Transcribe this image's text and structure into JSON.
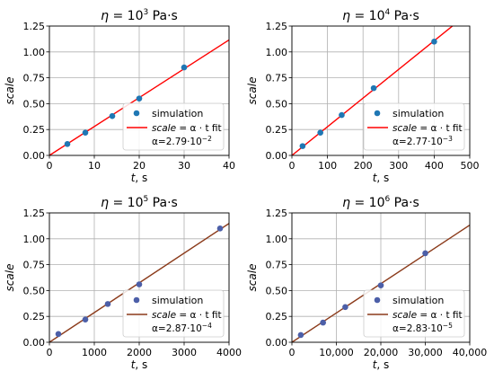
{
  "chart_data": [
    {
      "type": "scatter",
      "title_prefix": "η = 10",
      "title_exponent": "3",
      "title_unit": "Pa·s",
      "xlabel": "t, s",
      "ylabel": "scale",
      "xlim": [
        0,
        40
      ],
      "ylim": [
        0,
        1.25
      ],
      "xticks": [
        0,
        10,
        20,
        30,
        40
      ],
      "xtick_labels": [
        "0",
        "10",
        "20",
        "30",
        "40"
      ],
      "yticks": [
        0,
        0.25,
        0.5,
        0.75,
        1.0,
        1.25
      ],
      "ytick_labels": [
        "0.00",
        "0.25",
        "0.50",
        "0.75",
        "1.00",
        "1.25"
      ],
      "grid": true,
      "legend_position": "bottom-right",
      "points": [
        [
          4,
          0.11
        ],
        [
          8,
          0.22
        ],
        [
          14,
          0.38
        ],
        [
          20,
          0.55
        ],
        [
          30,
          0.85
        ]
      ],
      "fit_slope": 0.0279,
      "marker_color": "#1f77b4",
      "line_color": "#ff0000",
      "legend_simulation": "simulation",
      "legend_fit_lhs": "scale",
      "legend_fit_rhs": " = α · t fit",
      "legend_alpha_base": "α=2.79·10",
      "legend_alpha_exponent": "−2"
    },
    {
      "type": "scatter",
      "title_prefix": "η = 10",
      "title_exponent": "4",
      "title_unit": "Pa·s",
      "xlabel": "t, s",
      "ylabel": "scale",
      "xlim": [
        0,
        500
      ],
      "ylim": [
        0,
        1.25
      ],
      "xticks": [
        0,
        100,
        200,
        300,
        400,
        500
      ],
      "xtick_labels": [
        "0",
        "100",
        "200",
        "300",
        "400",
        "500"
      ],
      "yticks": [
        0,
        0.25,
        0.5,
        0.75,
        1.0,
        1.25
      ],
      "ytick_labels": [
        "0.00",
        "0.25",
        "0.50",
        "0.75",
        "1.00",
        "1.25"
      ],
      "grid": true,
      "legend_position": "bottom-right",
      "points": [
        [
          30,
          0.09
        ],
        [
          80,
          0.22
        ],
        [
          140,
          0.39
        ],
        [
          230,
          0.65
        ],
        [
          400,
          1.1
        ]
      ],
      "fit_slope": 0.00277,
      "marker_color": "#1f77b4",
      "line_color": "#ff0000",
      "legend_simulation": "simulation",
      "legend_fit_lhs": "scale",
      "legend_fit_rhs": " = α · t fit",
      "legend_alpha_base": "α=2.77·10",
      "legend_alpha_exponent": "−3"
    },
    {
      "type": "scatter",
      "title_prefix": "η = 10",
      "title_exponent": "5",
      "title_unit": "Pa·s",
      "xlabel": "t, s",
      "ylabel": "scale",
      "xlim": [
        0,
        4000
      ],
      "ylim": [
        0,
        1.25
      ],
      "xticks": [
        0,
        1000,
        2000,
        3000,
        4000
      ],
      "xtick_labels": [
        "0",
        "1000",
        "2000",
        "3000",
        "4000"
      ],
      "yticks": [
        0,
        0.25,
        0.5,
        0.75,
        1.0,
        1.25
      ],
      "ytick_labels": [
        "0.00",
        "0.25",
        "0.50",
        "0.75",
        "1.00",
        "1.25"
      ],
      "grid": true,
      "legend_position": "bottom-right",
      "points": [
        [
          200,
          0.08
        ],
        [
          800,
          0.22
        ],
        [
          1300,
          0.37
        ],
        [
          2000,
          0.56
        ],
        [
          3800,
          1.1
        ]
      ],
      "fit_slope": 0.000287,
      "marker_color": "#4c5fa8",
      "line_color": "#8b3a1a",
      "legend_simulation": "simulation",
      "legend_fit_lhs": "scale",
      "legend_fit_rhs": " = α · t fit",
      "legend_alpha_base": "α=2.87·10",
      "legend_alpha_exponent": "−4"
    },
    {
      "type": "scatter",
      "title_prefix": "η = 10",
      "title_exponent": "6",
      "title_unit": "Pa·s",
      "xlabel": "t, s",
      "ylabel": "scale",
      "xlim": [
        0,
        40000
      ],
      "ylim": [
        0,
        1.25
      ],
      "xticks": [
        0,
        10000,
        20000,
        30000,
        40000
      ],
      "xtick_labels": [
        "0",
        "10,000",
        "20,000",
        "30,000",
        "40,000"
      ],
      "yticks": [
        0,
        0.25,
        0.5,
        0.75,
        1.0,
        1.25
      ],
      "ytick_labels": [
        "0.00",
        "0.25",
        "0.50",
        "0.75",
        "1.00",
        "1.25"
      ],
      "grid": true,
      "legend_position": "bottom-right",
      "points": [
        [
          2000,
          0.07
        ],
        [
          7000,
          0.19
        ],
        [
          12000,
          0.34
        ],
        [
          20000,
          0.55
        ],
        [
          30000,
          0.86
        ]
      ],
      "fit_slope": 2.83e-05,
      "marker_color": "#4c5fa8",
      "line_color": "#8b3a1a",
      "legend_simulation": "simulation",
      "legend_fit_lhs": "scale",
      "legend_fit_rhs": " = α · t fit",
      "legend_alpha_base": "α=2.83·10",
      "legend_alpha_exponent": "−5"
    }
  ]
}
